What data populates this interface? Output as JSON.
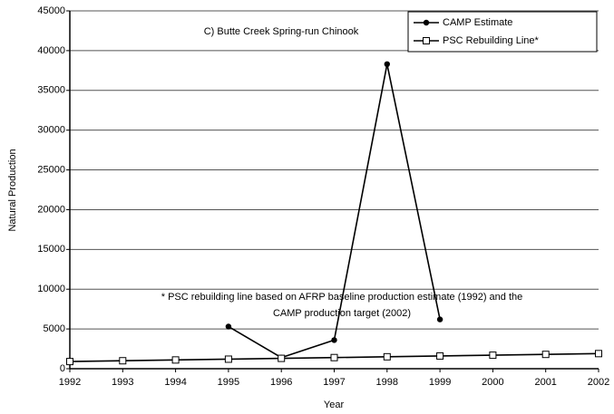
{
  "chart_data": {
    "type": "line",
    "title": "C) Butte Creek Spring-run Chinook",
    "x_label": "Year",
    "y_label": "Natural Production",
    "x": [
      1992,
      1993,
      1994,
      1995,
      1996,
      1997,
      1998,
      1999,
      2000,
      2001,
      2002
    ],
    "series": [
      {
        "name": "CAMP Estimate",
        "color": "#000000",
        "marker": "circle",
        "values": [
          null,
          null,
          null,
          5300,
          1400,
          3600,
          38300,
          6200,
          null,
          null,
          null
        ]
      },
      {
        "name": "PSC Rebuilding Line*",
        "color": "#000000",
        "marker": "open-square",
        "values": [
          900,
          1000,
          1100,
          1200,
          1300,
          1400,
          1500,
          1600,
          1700,
          1800,
          1900
        ]
      }
    ],
    "xlim": [
      1992,
      2002
    ],
    "xticks": [
      1992,
      1993,
      1994,
      1995,
      1996,
      1997,
      1998,
      1999,
      2000,
      2001,
      2002
    ],
    "ylim": [
      0,
      45000
    ],
    "yticks": [
      0,
      5000,
      10000,
      15000,
      20000,
      25000,
      30000,
      35000,
      40000,
      45000
    ],
    "grid": true,
    "legend": "upper right",
    "annotation": [
      "* PSC rebuilding line based on AFRP baseline production estimate (1992) and the",
      "CAMP production target (2002)"
    ]
  }
}
